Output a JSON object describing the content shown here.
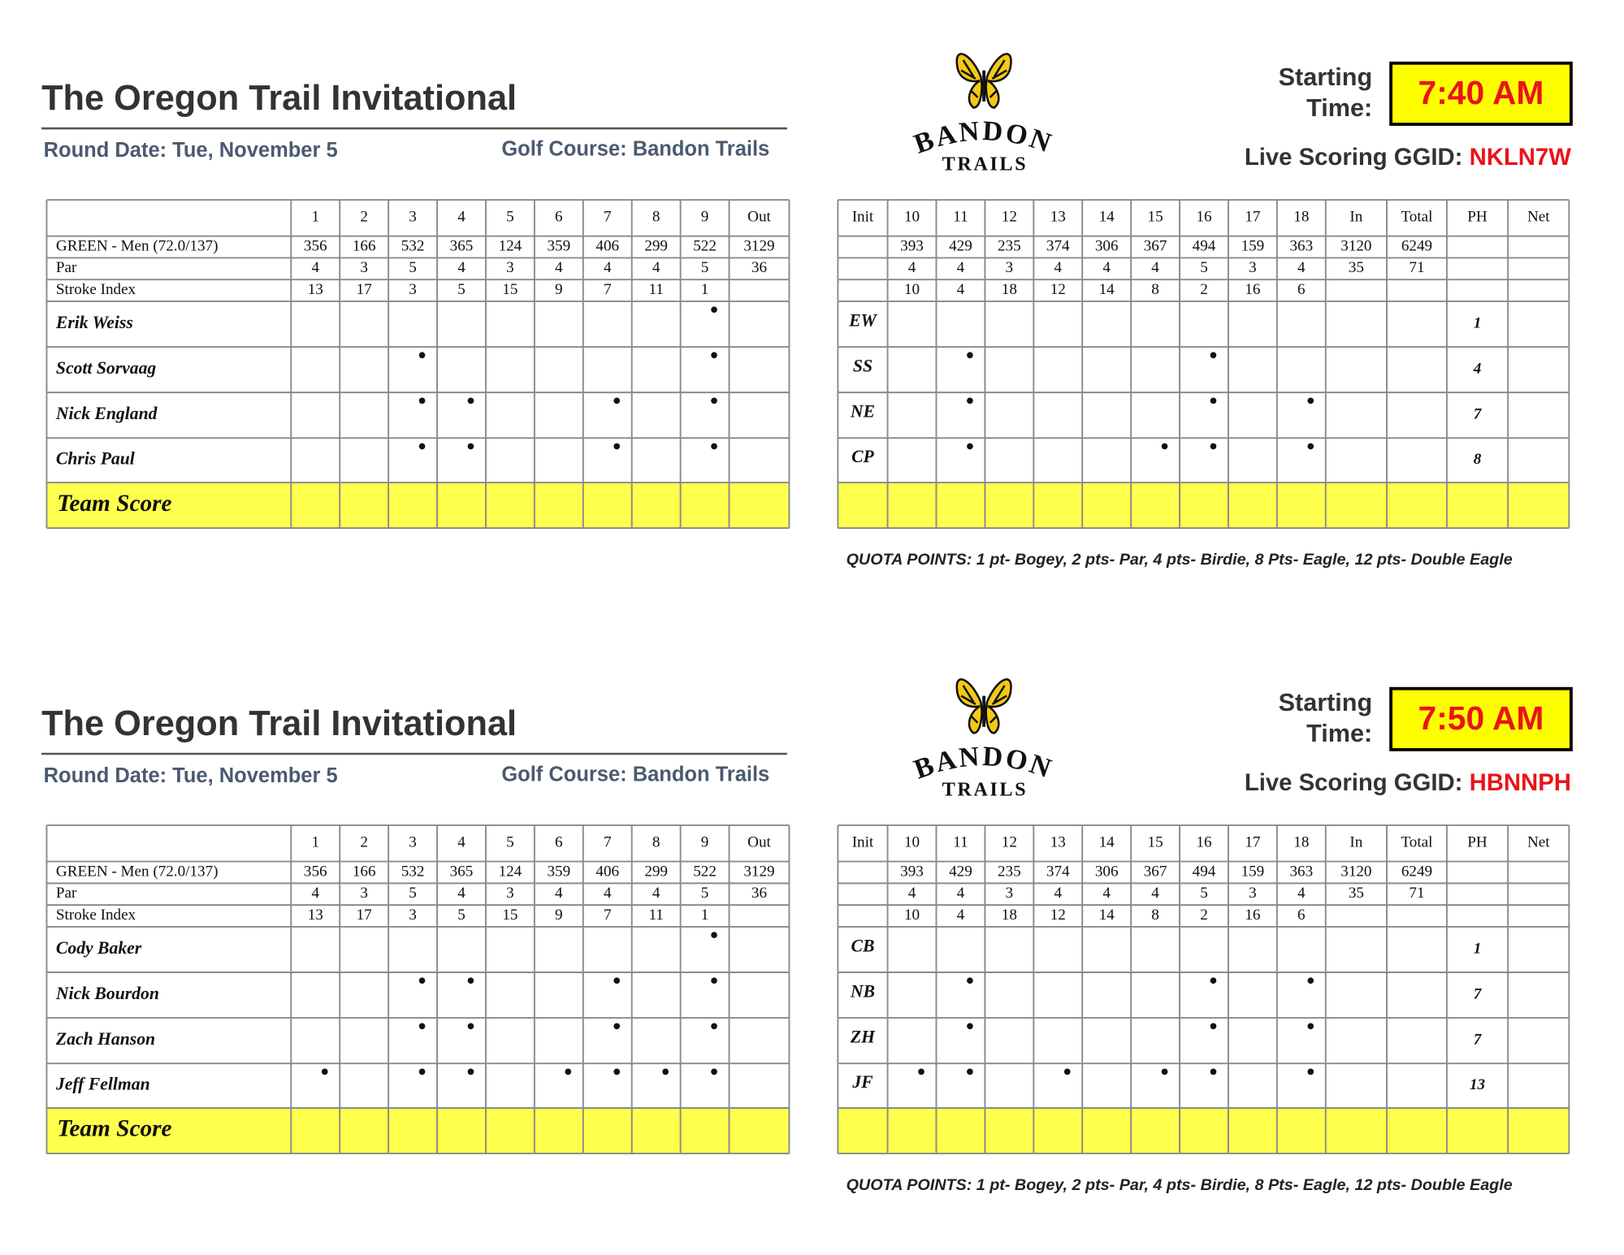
{
  "cards": [
    {
      "title": "The Oregon Trail Invitational",
      "round_date": "Round Date: Tue, November 5",
      "golf_course": "Golf Course: Bandon Trails",
      "logo": {
        "name": "BANDON",
        "sub": "TRAILS"
      },
      "starting_time_label": [
        "Starting",
        "Time:"
      ],
      "starting_time": "7:40 AM",
      "ggid_label": "Live Scoring GGID:",
      "ggid": "NKLN7W",
      "front_headers": [
        "1",
        "2",
        "3",
        "4",
        "5",
        "6",
        "7",
        "8",
        "9",
        "Out"
      ],
      "back_headers": [
        "Init",
        "10",
        "11",
        "12",
        "13",
        "14",
        "15",
        "16",
        "17",
        "18",
        "In",
        "Total",
        "PH",
        "Net"
      ],
      "tee": "GREEN - Men (72.0/137)",
      "par_label": "Par",
      "si_label": "Stroke Index",
      "yardage_front": [
        356,
        166,
        532,
        365,
        124,
        359,
        406,
        299,
        522,
        3129
      ],
      "yardage_back": [
        393,
        429,
        235,
        374,
        306,
        367,
        494,
        159,
        363,
        3120,
        6249
      ],
      "par_front": [
        4,
        3,
        5,
        4,
        3,
        4,
        4,
        4,
        5,
        36
      ],
      "par_back": [
        4,
        4,
        3,
        4,
        4,
        4,
        5,
        3,
        4,
        35,
        71
      ],
      "si_front": [
        13,
        17,
        3,
        5,
        15,
        9,
        7,
        11,
        1
      ],
      "si_back": [
        10,
        4,
        18,
        12,
        14,
        8,
        2,
        16,
        6
      ],
      "players": [
        {
          "name": "Erik Weiss",
          "init": "EW",
          "ph": 1,
          "stroke_holes": [
            9
          ]
        },
        {
          "name": "Scott Sorvaag",
          "init": "SS",
          "ph": 4,
          "stroke_holes": [
            3,
            9,
            11,
            16
          ]
        },
        {
          "name": "Nick England",
          "init": "NE",
          "ph": 7,
          "stroke_holes": [
            3,
            4,
            7,
            9,
            11,
            16,
            18
          ]
        },
        {
          "name": "Chris Paul",
          "init": "CP",
          "ph": 8,
          "stroke_holes": [
            3,
            4,
            7,
            9,
            11,
            15,
            16,
            18
          ]
        }
      ],
      "team_score": "Team Score",
      "quota": "QUOTA POINTS: 1 pt- Bogey, 2 pts- Par, 4 pts- Birdie, 8 Pts- Eagle, 12 pts- Double Eagle"
    },
    {
      "title": "The Oregon Trail Invitational",
      "round_date": "Round Date: Tue, November 5",
      "golf_course": "Golf Course: Bandon Trails",
      "logo": {
        "name": "BANDON",
        "sub": "TRAILS"
      },
      "starting_time_label": [
        "Starting",
        "Time:"
      ],
      "starting_time": "7:50 AM",
      "ggid_label": "Live Scoring GGID:",
      "ggid": "HBNNPH",
      "front_headers": [
        "1",
        "2",
        "3",
        "4",
        "5",
        "6",
        "7",
        "8",
        "9",
        "Out"
      ],
      "back_headers": [
        "Init",
        "10",
        "11",
        "12",
        "13",
        "14",
        "15",
        "16",
        "17",
        "18",
        "In",
        "Total",
        "PH",
        "Net"
      ],
      "tee": "GREEN - Men (72.0/137)",
      "par_label": "Par",
      "si_label": "Stroke Index",
      "yardage_front": [
        356,
        166,
        532,
        365,
        124,
        359,
        406,
        299,
        522,
        3129
      ],
      "yardage_back": [
        393,
        429,
        235,
        374,
        306,
        367,
        494,
        159,
        363,
        3120,
        6249
      ],
      "par_front": [
        4,
        3,
        5,
        4,
        3,
        4,
        4,
        4,
        5,
        36
      ],
      "par_back": [
        4,
        4,
        3,
        4,
        4,
        4,
        5,
        3,
        4,
        35,
        71
      ],
      "si_front": [
        13,
        17,
        3,
        5,
        15,
        9,
        7,
        11,
        1
      ],
      "si_back": [
        10,
        4,
        18,
        12,
        14,
        8,
        2,
        16,
        6
      ],
      "players": [
        {
          "name": "Cody Baker",
          "init": "CB",
          "ph": 1,
          "stroke_holes": [
            9
          ]
        },
        {
          "name": "Nick Bourdon",
          "init": "NB",
          "ph": 7,
          "stroke_holes": [
            3,
            4,
            7,
            9,
            11,
            16,
            18
          ]
        },
        {
          "name": "Zach Hanson",
          "init": "ZH",
          "ph": 7,
          "stroke_holes": [
            3,
            4,
            7,
            9,
            11,
            16,
            18
          ]
        },
        {
          "name": "Jeff Fellman",
          "init": "JF",
          "ph": 13,
          "stroke_holes": [
            1,
            3,
            4,
            6,
            7,
            8,
            9,
            10,
            11,
            13,
            15,
            16,
            18
          ]
        }
      ],
      "team_score": "Team Score",
      "quota": "QUOTA POINTS: 1 pt- Bogey, 2 pts- Par, 4 pts- Birdie, 8 Pts- Eagle, 12 pts- Double Eagle"
    }
  ]
}
